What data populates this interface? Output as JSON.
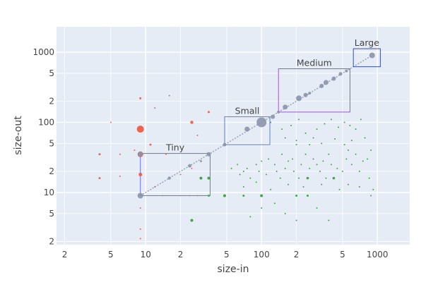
{
  "chart_data": {
    "type": "scatter",
    "xlabel": "size-in",
    "ylabel": "size-out",
    "x_scale": "log",
    "y_scale": "log",
    "xlim": [
      1.7,
      1900
    ],
    "ylim": [
      1.8,
      2300
    ],
    "grid": true,
    "legend": "none",
    "x_ticks": [
      {
        "v": 2,
        "t": "2"
      },
      {
        "v": 5,
        "t": "5"
      },
      {
        "v": 10,
        "t": "10"
      },
      {
        "v": 20,
        "t": "2"
      },
      {
        "v": 50,
        "t": "5"
      },
      {
        "v": 100,
        "t": "100"
      },
      {
        "v": 200,
        "t": "2"
      },
      {
        "v": 500,
        "t": "5"
      },
      {
        "v": 1000,
        "t": "1000"
      }
    ],
    "y_ticks": [
      {
        "v": 2,
        "t": "2"
      },
      {
        "v": 5,
        "t": "5"
      },
      {
        "v": 10,
        "t": "10"
      },
      {
        "v": 20,
        "t": "2"
      },
      {
        "v": 50,
        "t": "5"
      },
      {
        "v": 100,
        "t": "100"
      },
      {
        "v": 200,
        "t": "2"
      },
      {
        "v": 500,
        "t": "5"
      },
      {
        "v": 1000,
        "t": "1000"
      }
    ],
    "colors": {
      "red": "#ef553b",
      "green": "#2ca02c",
      "gray": "#8a94aa",
      "plot_bg": "#e5ecf6",
      "grid": "#ffffff",
      "diag_line": "#9aa3b5"
    },
    "regions": [
      {
        "label": "Tiny",
        "x0": 9,
        "x1": 36,
        "y0": 9,
        "y1": 36,
        "color": "#6f6fd8"
      },
      {
        "label": "Small",
        "x0": 48,
        "x1": 118,
        "y0": 48,
        "y1": 120,
        "color": "#5f7fe0"
      },
      {
        "label": "Medium",
        "x0": 140,
        "x1": 580,
        "y0": 140,
        "y1": 580,
        "color": "#9b59d0"
      },
      {
        "label": "Large",
        "x0": 620,
        "x1": 1060,
        "y0": 620,
        "y1": 1120,
        "color": "#3a4fb0"
      }
    ],
    "series": [
      {
        "color_key": "red",
        "points": [
          [
            9,
            80,
            5
          ],
          [
            9,
            35,
            4
          ],
          [
            9,
            18,
            2.5
          ],
          [
            9,
            3,
            1
          ],
          [
            9,
            2.2,
            1
          ],
          [
            9,
            6,
            1
          ],
          [
            9,
            220,
            1.5
          ],
          [
            4,
            35,
            1.5
          ],
          [
            4,
            16,
            1.5
          ],
          [
            5,
            100,
            1
          ],
          [
            6,
            35,
            1
          ],
          [
            6,
            17,
            1
          ],
          [
            8,
            40,
            1
          ],
          [
            11,
            48,
            1.5
          ],
          [
            12,
            160,
            1
          ],
          [
            12,
            12,
            1
          ],
          [
            15,
            35,
            1
          ],
          [
            16,
            240,
            1
          ],
          [
            25,
            100,
            2.2
          ],
          [
            35,
            140,
            1.5
          ],
          [
            25,
            22,
            1
          ],
          [
            28,
            65,
            1
          ],
          [
            20,
            18,
            1
          ]
        ]
      },
      {
        "color_key": "green",
        "points": [
          [
            25,
            4,
            2
          ],
          [
            48,
            9,
            2
          ],
          [
            100,
            9,
            2
          ],
          [
            70,
            9,
            1.5
          ],
          [
            200,
            9,
            1.5
          ],
          [
            250,
            9,
            1.5
          ],
          [
            30,
            16,
            2
          ],
          [
            35,
            16,
            2
          ],
          [
            35,
            9,
            1.5
          ],
          [
            250,
            16,
            1.8
          ],
          [
            420,
            16,
            1.8
          ],
          [
            200,
            48,
            1
          ],
          [
            260,
            48,
            1
          ],
          [
            520,
            48,
            1
          ],
          [
            560,
            40,
            1
          ],
          [
            880,
            40,
            1
          ],
          [
            880,
            9,
            1
          ],
          [
            850,
            16,
            1
          ],
          [
            55,
            22,
            1
          ],
          [
            62,
            25,
            1
          ],
          [
            65,
            18,
            1
          ],
          [
            70,
            20,
            1
          ],
          [
            75,
            22,
            1
          ],
          [
            80,
            16,
            1
          ],
          [
            90,
            25,
            1
          ],
          [
            95,
            20,
            1
          ],
          [
            100,
            28,
            1
          ],
          [
            110,
            18,
            1
          ],
          [
            115,
            30,
            1
          ],
          [
            130,
            25,
            1
          ],
          [
            135,
            20,
            1
          ],
          [
            145,
            16,
            1
          ],
          [
            150,
            35,
            1
          ],
          [
            160,
            22,
            1
          ],
          [
            170,
            28,
            1
          ],
          [
            185,
            30,
            1
          ],
          [
            190,
            20,
            1
          ],
          [
            210,
            16,
            1
          ],
          [
            220,
            25,
            1
          ],
          [
            240,
            35,
            1
          ],
          [
            260,
            22,
            1
          ],
          [
            280,
            30,
            1
          ],
          [
            300,
            25,
            1
          ],
          [
            320,
            20,
            1
          ],
          [
            340,
            28,
            1
          ],
          [
            360,
            16,
            1
          ],
          [
            380,
            35,
            1
          ],
          [
            400,
            25,
            1
          ],
          [
            450,
            22,
            1
          ],
          [
            500,
            20,
            1
          ],
          [
            540,
            30,
            1
          ],
          [
            600,
            25,
            1
          ],
          [
            650,
            35,
            1
          ],
          [
            700,
            20,
            1
          ],
          [
            750,
            28,
            1
          ],
          [
            820,
            30,
            1
          ],
          [
            120,
            100,
            1
          ],
          [
            150,
            80,
            1
          ],
          [
            180,
            90,
            1
          ],
          [
            210,
            110,
            1
          ],
          [
            240,
            70,
            1
          ],
          [
            300,
            80,
            1
          ],
          [
            350,
            95,
            1
          ],
          [
            400,
            110,
            1
          ],
          [
            460,
            85,
            1
          ],
          [
            520,
            100,
            1
          ],
          [
            580,
            90,
            1
          ],
          [
            650,
            80,
            1
          ],
          [
            720,
            110,
            1
          ],
          [
            160,
            60,
            1
          ],
          [
            200,
            55,
            1
          ],
          [
            280,
            60,
            1
          ],
          [
            330,
            50,
            1
          ],
          [
            430,
            58,
            1
          ],
          [
            600,
            55,
            1
          ],
          [
            780,
            60,
            1
          ],
          [
            80,
            4.5,
            1
          ],
          [
            100,
            6,
            1
          ],
          [
            130,
            7,
            1
          ],
          [
            160,
            5,
            1
          ],
          [
            200,
            4,
            1
          ],
          [
            300,
            6,
            1
          ],
          [
            380,
            4,
            1
          ],
          [
            70,
            12,
            1
          ],
          [
            90,
            14,
            1
          ],
          [
            120,
            11,
            1
          ],
          [
            170,
            13,
            1
          ],
          [
            230,
            12,
            1
          ],
          [
            330,
            13,
            1
          ],
          [
            470,
            11,
            1
          ],
          [
            560,
            13,
            1
          ],
          [
            700,
            12,
            1
          ],
          [
            920,
            11,
            1
          ]
        ]
      },
      {
        "color_key": "gray",
        "points": [
          [
            9,
            9,
            4
          ],
          [
            9,
            35,
            3.5
          ],
          [
            16,
            16,
            2.2
          ],
          [
            24,
            24,
            2.5
          ],
          [
            35,
            35,
            3
          ],
          [
            30,
            28,
            1.5
          ],
          [
            48,
            48,
            2.5
          ],
          [
            75,
            80,
            3.5
          ],
          [
            100,
            100,
            7
          ],
          [
            125,
            120,
            3
          ],
          [
            140,
            140,
            2
          ],
          [
            160,
            165,
            3.5
          ],
          [
            210,
            220,
            4
          ],
          [
            240,
            245,
            3
          ],
          [
            260,
            260,
            2
          ],
          [
            330,
            330,
            3
          ],
          [
            360,
            370,
            3.5
          ],
          [
            420,
            420,
            3
          ],
          [
            480,
            490,
            2.5
          ],
          [
            540,
            540,
            2
          ],
          [
            900,
            900,
            4
          ],
          [
            24,
            9,
            1
          ],
          [
            28,
            9,
            1
          ],
          [
            35,
            9,
            1
          ],
          [
            20,
            9,
            1
          ],
          [
            14,
            9,
            1
          ]
        ]
      }
    ],
    "diagonal": {
      "from": 9,
      "to": 900
    }
  }
}
